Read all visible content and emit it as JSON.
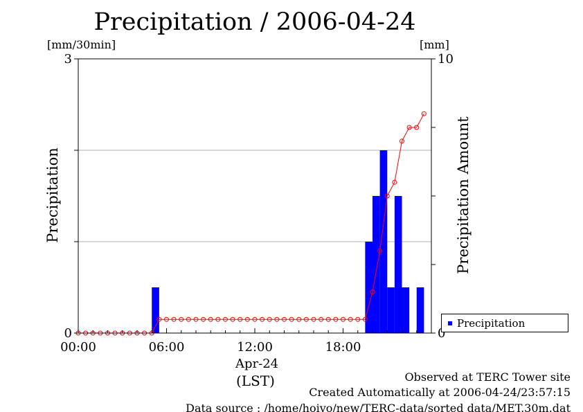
{
  "title": "Precipitation / 2006-04-24",
  "units": {
    "left": "[mm/30min]",
    "right": "[mm]"
  },
  "observed": "Observed at TERC Tower site",
  "created": "Created Automatically at 2006-04-24/23:57:15",
  "source": "Data source : /home/hoivo/new/TERC-data/sorted  data/MET.30m.dat",
  "colors": {
    "bar": "#0000ff",
    "line": "#ff0000",
    "grid": "#b0b0b0"
  },
  "chart_data": {
    "type": "bar",
    "title": "Precipitation / 2006-04-24",
    "xlabel": "Apr-24",
    "xlabel2": "(LST)",
    "ylabel": "Precipitation",
    "ylabel_right": "Precipitation Amount",
    "xlim": [
      0,
      24
    ],
    "ylim": [
      0,
      3
    ],
    "ylim_right": [
      0,
      10
    ],
    "x_ticks": [
      "00:00",
      "06:00",
      "12:00",
      "18:00"
    ],
    "y_ticks_left": [
      "0",
      "3"
    ],
    "y_ticks_right": [
      "0",
      "10"
    ],
    "grid": true,
    "legend": {
      "position": "lower-right-outside",
      "entries": [
        "Precipitation"
      ]
    },
    "bars": {
      "name": "Precipitation",
      "half_hour_starts": [
        5.0,
        19.5,
        20.0,
        20.5,
        21.0,
        21.5,
        22.0,
        23.0
      ],
      "values": [
        0.5,
        1.0,
        1.5,
        2.0,
        0.5,
        1.5,
        0.5,
        0.5
      ]
    },
    "cumulative": {
      "x": [
        0,
        0.5,
        1,
        1.5,
        2,
        2.5,
        3,
        3.5,
        4,
        4.5,
        5,
        5.5,
        6,
        6.5,
        7,
        7.5,
        8,
        8.5,
        9,
        9.5,
        10,
        10.5,
        11,
        11.5,
        12,
        12.5,
        13,
        13.5,
        14,
        14.5,
        15,
        15.5,
        16,
        16.5,
        17,
        17.5,
        18,
        18.5,
        19,
        19.5,
        20,
        20.5,
        21,
        21.5,
        22,
        22.5,
        23,
        23.5
      ],
      "values": [
        0,
        0,
        0,
        0,
        0,
        0,
        0,
        0,
        0,
        0,
        0,
        0.5,
        0.5,
        0.5,
        0.5,
        0.5,
        0.5,
        0.5,
        0.5,
        0.5,
        0.5,
        0.5,
        0.5,
        0.5,
        0.5,
        0.5,
        0.5,
        0.5,
        0.5,
        0.5,
        0.5,
        0.5,
        0.5,
        0.5,
        0.5,
        0.5,
        0.5,
        0.5,
        0.5,
        0.5,
        1.5,
        3.0,
        5.0,
        5.5,
        7.0,
        7.5,
        7.5,
        8.0
      ]
    }
  }
}
